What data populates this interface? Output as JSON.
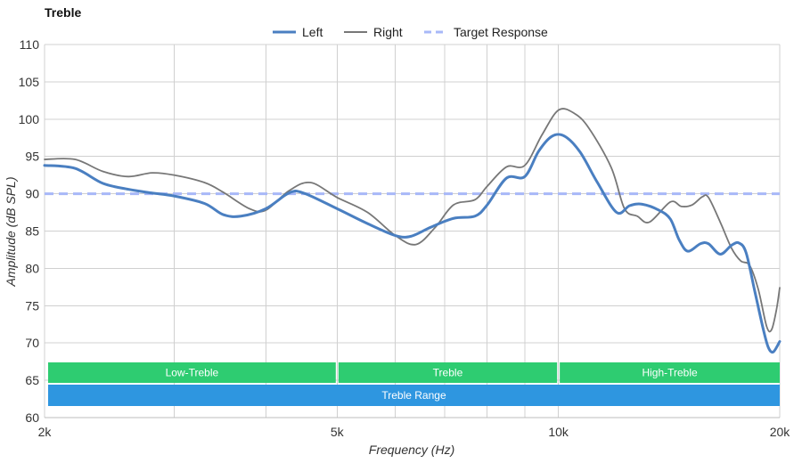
{
  "chart_data": {
    "type": "line",
    "title": "Treble",
    "xlabel": "Frequency (Hz)",
    "ylabel": "Amplitude (dB SPL)",
    "x_scale": "log",
    "xlim": [
      2000,
      20000
    ],
    "ylim": [
      60,
      110
    ],
    "x_ticks": [
      {
        "value": 2000,
        "label": "2k"
      },
      {
        "value": 5000,
        "label": "5k"
      },
      {
        "value": 10000,
        "label": "10k"
      },
      {
        "value": 20000,
        "label": "20k"
      }
    ],
    "x_gridlines": [
      2000,
      3000,
      4000,
      5000,
      6000,
      7000,
      8000,
      9000,
      10000,
      20000
    ],
    "y_ticks": [
      60,
      65,
      70,
      75,
      80,
      85,
      90,
      95,
      100,
      105,
      110
    ],
    "grid": true,
    "legend_position": "top-center",
    "series": [
      {
        "name": "Left",
        "color": "#4a7fc1",
        "style": "solid-thick",
        "points": [
          [
            2000,
            93.8
          ],
          [
            2200,
            93.4
          ],
          [
            2400,
            91.4
          ],
          [
            2600,
            90.6
          ],
          [
            2800,
            90.1
          ],
          [
            3000,
            89.7
          ],
          [
            3300,
            88.7
          ],
          [
            3500,
            87.2
          ],
          [
            3700,
            87.0
          ],
          [
            4000,
            88.0
          ],
          [
            4300,
            90.1
          ],
          [
            4500,
            90.1
          ],
          [
            5000,
            88.0
          ],
          [
            5500,
            86.0
          ],
          [
            6000,
            84.4
          ],
          [
            6300,
            84.3
          ],
          [
            6700,
            85.5
          ],
          [
            7200,
            86.7
          ],
          [
            7700,
            87.0
          ],
          [
            8000,
            88.5
          ],
          [
            8500,
            92.1
          ],
          [
            9000,
            92.3
          ],
          [
            9400,
            95.7
          ],
          [
            9800,
            97.7
          ],
          [
            10200,
            97.7
          ],
          [
            10700,
            95.6
          ],
          [
            11300,
            91.5
          ],
          [
            12000,
            87.5
          ],
          [
            12500,
            88.4
          ],
          [
            13000,
            88.6
          ],
          [
            13700,
            87.8
          ],
          [
            14200,
            86.6
          ],
          [
            14600,
            83.8
          ],
          [
            15000,
            82.3
          ],
          [
            15600,
            83.3
          ],
          [
            16000,
            83.3
          ],
          [
            16600,
            81.9
          ],
          [
            17200,
            83.1
          ],
          [
            17600,
            83.4
          ],
          [
            18000,
            82.1
          ],
          [
            18500,
            76.9
          ],
          [
            19000,
            71.8
          ],
          [
            19300,
            69.4
          ],
          [
            19600,
            68.8
          ],
          [
            20000,
            70.2
          ]
        ]
      },
      {
        "name": "Right",
        "color": "#777777",
        "style": "solid-thin",
        "points": [
          [
            2000,
            94.6
          ],
          [
            2200,
            94.6
          ],
          [
            2400,
            93.0
          ],
          [
            2600,
            92.3
          ],
          [
            2800,
            92.8
          ],
          [
            3000,
            92.5
          ],
          [
            3300,
            91.5
          ],
          [
            3500,
            90.2
          ],
          [
            3800,
            88.0
          ],
          [
            4000,
            87.8
          ],
          [
            4300,
            90.4
          ],
          [
            4600,
            91.5
          ],
          [
            5000,
            89.5
          ],
          [
            5500,
            87.5
          ],
          [
            6000,
            84.4
          ],
          [
            6400,
            83.2
          ],
          [
            6800,
            85.5
          ],
          [
            7200,
            88.5
          ],
          [
            7700,
            89.2
          ],
          [
            8000,
            91.0
          ],
          [
            8500,
            93.6
          ],
          [
            9000,
            93.8
          ],
          [
            9500,
            97.9
          ],
          [
            10000,
            101.2
          ],
          [
            10500,
            100.8
          ],
          [
            11000,
            98.8
          ],
          [
            11800,
            93.5
          ],
          [
            12300,
            88.0
          ],
          [
            12800,
            87.0
          ],
          [
            13300,
            86.2
          ],
          [
            14200,
            88.9
          ],
          [
            14700,
            88.3
          ],
          [
            15200,
            88.5
          ],
          [
            15700,
            89.6
          ],
          [
            16000,
            89.5
          ],
          [
            16600,
            86.2
          ],
          [
            17200,
            82.7
          ],
          [
            17700,
            81.0
          ],
          [
            18200,
            80.4
          ],
          [
            18700,
            77.2
          ],
          [
            19200,
            72.2
          ],
          [
            19500,
            71.8
          ],
          [
            19800,
            74.5
          ],
          [
            20000,
            77.4
          ]
        ]
      },
      {
        "name": "Target Response",
        "color": "#a8b8f8",
        "style": "dashed",
        "points": [
          [
            2000,
            90
          ],
          [
            20000,
            90
          ]
        ]
      }
    ],
    "bands": [
      {
        "label": "Low-Treble",
        "from": 2000,
        "to": 5000,
        "row": 1,
        "color": "#2ecc71"
      },
      {
        "label": "Treble",
        "from": 5000,
        "to": 10000,
        "row": 1,
        "color": "#2ecc71"
      },
      {
        "label": "High-Treble",
        "from": 10000,
        "to": 20000,
        "row": 1,
        "color": "#2ecc71"
      },
      {
        "label": "Treble Range",
        "from": 2000,
        "to": 20000,
        "row": 2,
        "color": "#2e96e0"
      }
    ]
  }
}
